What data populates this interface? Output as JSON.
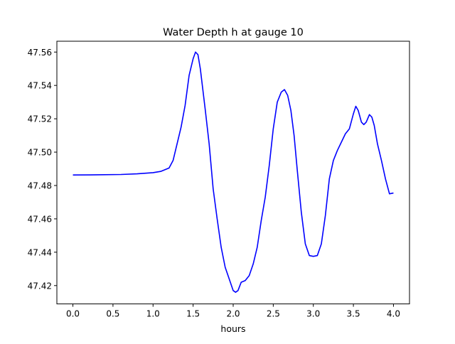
{
  "chart_data": {
    "type": "line",
    "title": "Water Depth h at gauge 10",
    "xlabel": "hours",
    "ylabel": "",
    "xlim": [
      -0.2,
      4.2
    ],
    "ylim": [
      47.409,
      47.5665
    ],
    "xticks": [
      0.0,
      0.5,
      1.0,
      1.5,
      2.0,
      2.5,
      3.0,
      3.5,
      4.0
    ],
    "xtick_labels": [
      "0.0",
      "0.5",
      "1.0",
      "1.5",
      "2.0",
      "2.5",
      "3.0",
      "3.5",
      "4.0"
    ],
    "yticks": [
      47.42,
      47.44,
      47.46,
      47.48,
      47.5,
      47.52,
      47.54,
      47.56
    ],
    "ytick_labels": [
      "47.42",
      "47.44",
      "47.46",
      "47.48",
      "47.50",
      "47.52",
      "47.54",
      "47.56"
    ],
    "grid": false,
    "series": [
      {
        "color": "#0000ff",
        "x": [
          0.0,
          0.3,
          0.6,
          0.8,
          1.0,
          1.1,
          1.2,
          1.25,
          1.3,
          1.35,
          1.4,
          1.45,
          1.5,
          1.53,
          1.56,
          1.59,
          1.62,
          1.65,
          1.7,
          1.75,
          1.8,
          1.85,
          1.9,
          1.95,
          2.0,
          2.03,
          2.06,
          2.1,
          2.15,
          2.2,
          2.25,
          2.3,
          2.35,
          2.4,
          2.45,
          2.5,
          2.55,
          2.6,
          2.64,
          2.68,
          2.72,
          2.76,
          2.8,
          2.85,
          2.9,
          2.95,
          3.0,
          3.05,
          3.1,
          3.15,
          3.2,
          3.25,
          3.3,
          3.35,
          3.4,
          3.45,
          3.5,
          3.53,
          3.56,
          3.6,
          3.63,
          3.66,
          3.7,
          3.73,
          3.76,
          3.8,
          3.85,
          3.9,
          3.95,
          4.0
        ],
        "y": [
          47.4863,
          47.4864,
          47.4866,
          47.487,
          47.4877,
          47.4885,
          47.4905,
          47.495,
          47.505,
          47.515,
          47.528,
          47.546,
          47.556,
          47.56,
          47.5585,
          47.55,
          47.538,
          47.526,
          47.505,
          47.478,
          47.46,
          47.443,
          47.431,
          47.424,
          47.417,
          47.416,
          47.417,
          47.422,
          47.423,
          47.426,
          47.433,
          47.443,
          47.459,
          47.473,
          47.492,
          47.514,
          47.53,
          47.536,
          47.5375,
          47.534,
          47.525,
          47.51,
          47.489,
          47.464,
          47.445,
          47.438,
          47.4375,
          47.438,
          47.445,
          47.462,
          47.484,
          47.495,
          47.501,
          47.506,
          47.511,
          47.514,
          47.523,
          47.5275,
          47.525,
          47.518,
          47.5165,
          47.518,
          47.5225,
          47.521,
          47.516,
          47.505,
          47.495,
          47.484,
          47.475,
          47.4755
        ]
      }
    ]
  }
}
